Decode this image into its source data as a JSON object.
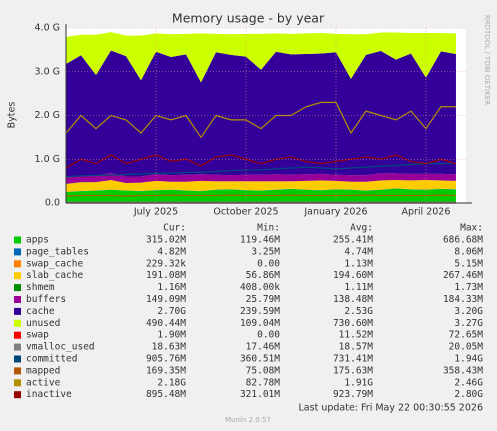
{
  "chart_data": {
    "type": "area",
    "title": "Memory usage - by year",
    "y_label": "Bytes",
    "watermark": "RRDTOOL / TOBI OETIKER",
    "ylim": [
      0,
      4
    ],
    "yticks": [
      {
        "value": 0,
        "label": "0.0"
      },
      {
        "value": 1,
        "label": "1.0 G"
      },
      {
        "value": 2,
        "label": "2.0 G"
      },
      {
        "value": 3,
        "label": "3.0 G"
      },
      {
        "value": 4,
        "label": "4.0 G"
      }
    ],
    "grid": true,
    "categories": [
      null,
      null,
      null,
      null,
      null,
      null,
      "July 2025",
      null,
      null,
      null,
      null,
      null,
      "October 2025",
      null,
      null,
      null,
      null,
      null,
      "January 2026",
      null,
      null,
      null,
      null,
      null,
      "April 2026",
      null,
      null
    ],
    "series": [
      {
        "name": "apps",
        "color": "#00cc00",
        "kind": "area",
        "values": [
          0.25,
          0.27,
          0.28,
          0.3,
          0.28,
          0.27,
          0.29,
          0.3,
          0.28,
          0.27,
          0.3,
          0.31,
          0.29,
          0.28,
          0.3,
          0.32,
          0.3,
          0.29,
          0.31,
          0.3,
          0.28,
          0.3,
          0.33,
          0.31,
          0.3,
          0.32,
          0.31
        ]
      },
      {
        "name": "page_tables",
        "color": "#0066b3",
        "kind": "area",
        "values": [
          0.005,
          0.005,
          0.005,
          0.005,
          0.005,
          0.005,
          0.005,
          0.005,
          0.005,
          0.005,
          0.005,
          0.005,
          0.005,
          0.005,
          0.005,
          0.005,
          0.005,
          0.005,
          0.005,
          0.005,
          0.005,
          0.005,
          0.005,
          0.005,
          0.005,
          0.005,
          0.005
        ]
      },
      {
        "name": "swap_cache",
        "color": "#ff8000",
        "kind": "area",
        "values": [
          0.0002,
          0.0002,
          0.0002,
          0.0002,
          0.0002,
          0.0002,
          0.0002,
          0.0002,
          0.0002,
          0.0002,
          0.0002,
          0.0002,
          0.0002,
          0.0002,
          0.0002,
          0.0002,
          0.0002,
          0.0002,
          0.0002,
          0.0002,
          0.0002,
          0.0002,
          0.0002,
          0.0002,
          0.0002,
          0.0002,
          0.0002
        ]
      },
      {
        "name": "slab_cache",
        "color": "#ffcc00",
        "kind": "area",
        "values": [
          0.18,
          0.2,
          0.19,
          0.22,
          0.17,
          0.19,
          0.21,
          0.18,
          0.2,
          0.23,
          0.19,
          0.18,
          0.2,
          0.21,
          0.19,
          0.17,
          0.2,
          0.22,
          0.19,
          0.18,
          0.2,
          0.21,
          0.19,
          0.2,
          0.22,
          0.19,
          0.19
        ]
      },
      {
        "name": "shmem",
        "color": "#008f00",
        "kind": "area",
        "values": [
          0.001,
          0.001,
          0.001,
          0.001,
          0.001,
          0.001,
          0.001,
          0.001,
          0.001,
          0.001,
          0.001,
          0.001,
          0.001,
          0.001,
          0.001,
          0.001,
          0.001,
          0.001,
          0.001,
          0.001,
          0.001,
          0.001,
          0.001,
          0.001,
          0.001,
          0.001,
          0.001
        ]
      },
      {
        "name": "buffers",
        "color": "#990099",
        "kind": "area",
        "values": [
          0.14,
          0.15,
          0.15,
          0.16,
          0.15,
          0.14,
          0.15,
          0.15,
          0.16,
          0.15,
          0.15,
          0.14,
          0.15,
          0.15,
          0.16,
          0.15,
          0.15,
          0.15,
          0.14,
          0.15,
          0.15,
          0.16,
          0.15,
          0.15,
          0.14,
          0.15,
          0.15
        ]
      },
      {
        "name": "cache",
        "color": "#330099",
        "kind": "area",
        "values": [
          2.6,
          2.75,
          2.3,
          2.8,
          2.75,
          2.2,
          2.8,
          2.7,
          2.75,
          2.1,
          2.8,
          2.75,
          2.7,
          2.4,
          2.8,
          2.75,
          2.75,
          2.75,
          2.8,
          2.2,
          2.75,
          2.8,
          2.6,
          2.75,
          2.2,
          2.8,
          2.75
        ]
      },
      {
        "name": "unused",
        "color": "#ccff00",
        "kind": "area",
        "values": [
          0.62,
          0.47,
          0.92,
          0.42,
          0.47,
          1.02,
          0.42,
          0.52,
          0.47,
          1.12,
          0.42,
          0.47,
          0.52,
          0.82,
          0.42,
          0.47,
          0.47,
          0.47,
          0.42,
          1.02,
          0.47,
          0.42,
          0.62,
          0.47,
          1.02,
          0.42,
          0.47
        ]
      },
      {
        "name": "swap",
        "color": "#ff0000",
        "kind": "line",
        "values": [
          0,
          0,
          0,
          0,
          0,
          0,
          0,
          0,
          0,
          0,
          0,
          0,
          0,
          0,
          0,
          0,
          0,
          0,
          0,
          0,
          0,
          0,
          0,
          0,
          0,
          0,
          0
        ]
      },
      {
        "name": "vmalloc_used",
        "color": "#808080",
        "kind": "line",
        "values": [
          0.018,
          0.018,
          0.018,
          0.018,
          0.018,
          0.018,
          0.018,
          0.018,
          0.018,
          0.018,
          0.018,
          0.018,
          0.018,
          0.018,
          0.018,
          0.018,
          0.018,
          0.018,
          0.018,
          0.018,
          0.018,
          0.018,
          0.018,
          0.018,
          0.018,
          0.018,
          0.018
        ]
      },
      {
        "name": "committed",
        "color": "#00487d",
        "kind": "line",
        "values": [
          0.6,
          0.62,
          0.63,
          0.64,
          0.65,
          0.66,
          0.68,
          0.68,
          0.7,
          0.7,
          0.72,
          0.74,
          0.75,
          0.76,
          0.78,
          0.8,
          0.82,
          0.8,
          0.78,
          0.8,
          0.82,
          0.84,
          0.86,
          0.88,
          0.9,
          0.9,
          0.91
        ]
      },
      {
        "name": "mapped",
        "color": "#b35a00",
        "kind": "line",
        "values": [
          0.16,
          0.17,
          0.17,
          0.17,
          0.16,
          0.17,
          0.17,
          0.18,
          0.17,
          0.17,
          0.17,
          0.18,
          0.17,
          0.17,
          0.17,
          0.18,
          0.17,
          0.17,
          0.17,
          0.17,
          0.18,
          0.17,
          0.17,
          0.17,
          0.17,
          0.18,
          0.17
        ]
      },
      {
        "name": "active",
        "color": "#b38f00",
        "kind": "line",
        "values": [
          1.6,
          2.0,
          1.7,
          2.0,
          1.9,
          1.6,
          2.0,
          1.9,
          2.0,
          1.5,
          2.0,
          1.9,
          1.9,
          1.7,
          2.0,
          2.0,
          2.2,
          2.3,
          2.3,
          1.6,
          2.1,
          2.0,
          1.9,
          2.1,
          1.7,
          2.2,
          2.2
        ]
      },
      {
        "name": "inactive",
        "color": "#990000",
        "kind": "line",
        "values": [
          0.8,
          1.0,
          0.9,
          1.1,
          0.9,
          1.0,
          1.1,
          0.95,
          1.0,
          0.85,
          1.05,
          1.1,
          1.0,
          0.9,
          1.0,
          1.05,
          0.95,
          0.9,
          0.95,
          1.0,
          1.05,
          1.0,
          1.1,
          0.95,
          0.9,
          1.0,
          0.9
        ]
      }
    ],
    "legend_header": [
      "Cur:",
      "Min:",
      "Avg:",
      "Max:"
    ],
    "legend_stats": [
      [
        "315.02M",
        "119.46M",
        "255.41M",
        "686.68M"
      ],
      [
        "4.82M",
        "3.25M",
        "4.74M",
        "8.06M"
      ],
      [
        "229.32k",
        "0.00",
        "1.13M",
        "5.15M"
      ],
      [
        "191.08M",
        "56.86M",
        "194.60M",
        "267.46M"
      ],
      [
        "1.16M",
        "408.00k",
        "1.11M",
        "1.73M"
      ],
      [
        "149.09M",
        "25.79M",
        "138.48M",
        "184.33M"
      ],
      [
        "2.70G",
        "239.59M",
        "2.53G",
        "3.20G"
      ],
      [
        "490.44M",
        "109.04M",
        "730.60M",
        "3.27G"
      ],
      [
        "1.90M",
        "0.00",
        "11.52M",
        "72.65M"
      ],
      [
        "18.63M",
        "17.46M",
        "18.57M",
        "20.05M"
      ],
      [
        "905.76M",
        "360.51M",
        "731.41M",
        "1.94G"
      ],
      [
        "169.35M",
        "75.08M",
        "175.63M",
        "358.43M"
      ],
      [
        "2.18G",
        "82.78M",
        "1.91G",
        "2.46G"
      ],
      [
        "895.48M",
        "321.01M",
        "923.79M",
        "2.80G"
      ]
    ],
    "last_update": "Last update: Fri May 22 00:30:55 2026",
    "footer": "Munin 2.0.57"
  }
}
